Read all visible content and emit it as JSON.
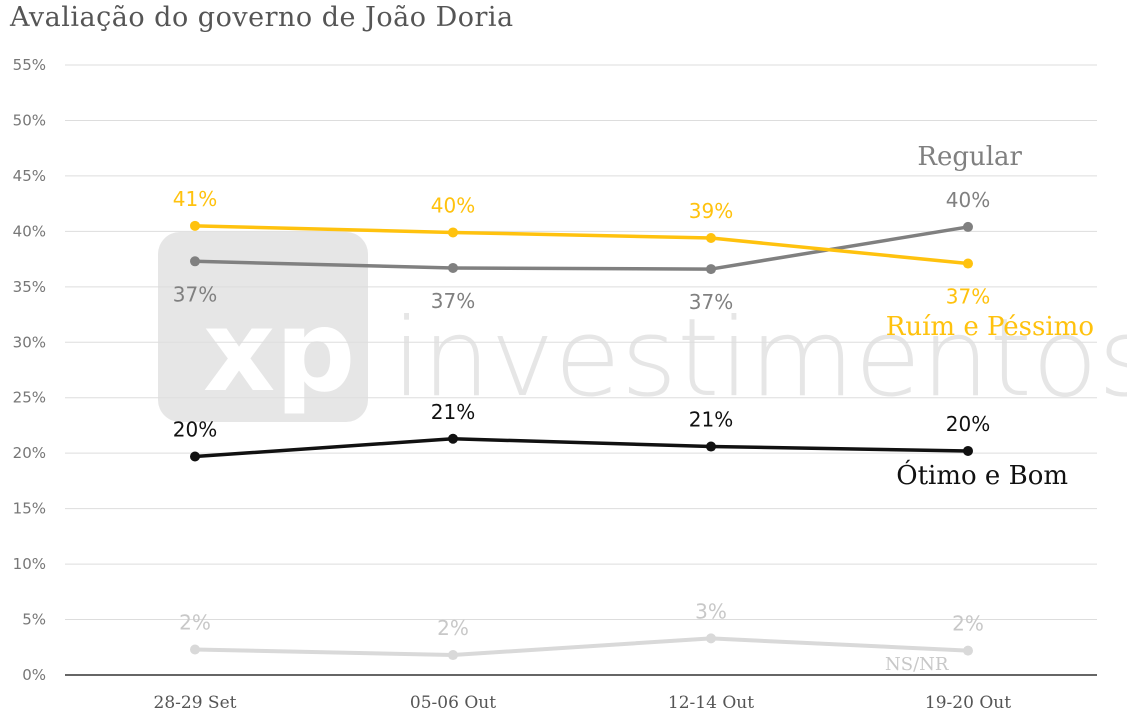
{
  "title": "Avaliação do governo de João Doria",
  "watermark": {
    "brand": "xp",
    "text": "investimentos"
  },
  "chart_data": {
    "type": "line",
    "title": "Avaliação do governo de João Doria",
    "categories": [
      "28-29 Set",
      "05-06 Out",
      "12-14 Out",
      "19-20 Out"
    ],
    "ylim": [
      0,
      55
    ],
    "yticks": [
      "0%",
      "5%",
      "10%",
      "15%",
      "20%",
      "25%",
      "30%",
      "35%",
      "40%",
      "45%",
      "50%",
      "55%"
    ],
    "ytick_values": [
      0,
      5,
      10,
      15,
      20,
      25,
      30,
      35,
      40,
      45,
      50,
      55
    ],
    "grid": true,
    "series": [
      {
        "name": "Regular",
        "values": [
          37.3,
          36.7,
          36.6,
          40.4
        ],
        "labels": [
          "37%",
          "37%",
          "37%",
          "40%"
        ],
        "color": "#808080",
        "label_pos": [
          "below",
          "below",
          "below",
          "above"
        ]
      },
      {
        "name": "Ruím e Péssimo",
        "values": [
          40.5,
          39.9,
          39.4,
          37.1
        ],
        "labels": [
          "41%",
          "40%",
          "39%",
          "37%"
        ],
        "color": "#FFC20E",
        "label_pos": [
          "above",
          "above",
          "above",
          "below"
        ]
      },
      {
        "name": "Ótimo e Bom",
        "values": [
          19.7,
          21.3,
          20.6,
          20.2
        ],
        "labels": [
          "20%",
          "21%",
          "21%",
          "20%"
        ],
        "color": "#111111",
        "label_pos": [
          "above",
          "above",
          "above",
          "above"
        ]
      },
      {
        "name": "NS/NR",
        "values": [
          2.3,
          1.8,
          3.3,
          2.2
        ],
        "labels": [
          "2%",
          "2%",
          "3%",
          "2%"
        ],
        "color": "#d9d9d9",
        "label_pos": [
          "above",
          "above",
          "above",
          "above"
        ]
      }
    ]
  }
}
